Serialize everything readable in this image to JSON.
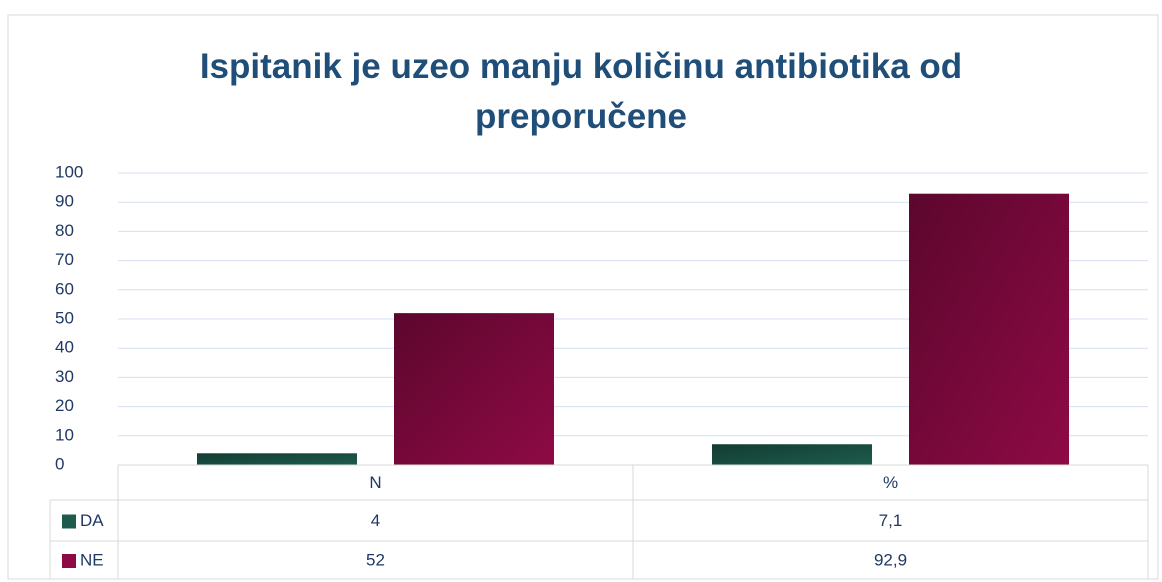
{
  "chart_data": {
    "type": "bar",
    "title": "Ispitanik je uzeo manju količinu antibiotika od preporučene",
    "categories": [
      "N",
      "%"
    ],
    "series": [
      {
        "name": "DA",
        "color": "#1d5c4d",
        "values": [
          4,
          7.1
        ],
        "value_labels": [
          "4",
          "7,1"
        ]
      },
      {
        "name": "NE",
        "color": "#8e0a45",
        "values": [
          52,
          92.9
        ],
        "value_labels": [
          "52",
          "92,9"
        ]
      }
    ],
    "ylim": [
      0,
      100
    ],
    "yticks": [
      0,
      10,
      20,
      30,
      40,
      50,
      60,
      70,
      80,
      90,
      100
    ],
    "grid": true,
    "data_table": true
  }
}
